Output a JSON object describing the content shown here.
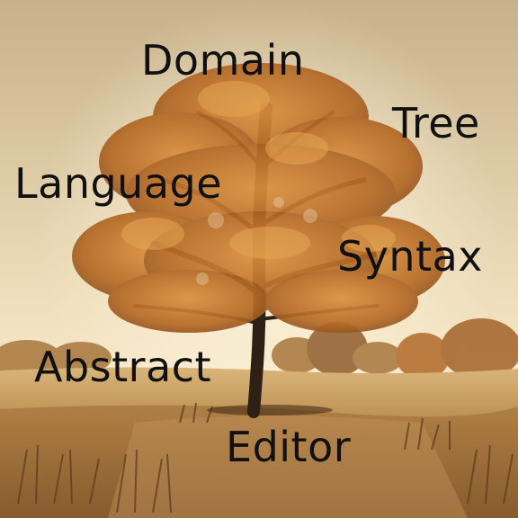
{
  "words": {
    "domain": "Domain",
    "tree": "Tree",
    "language": "Language",
    "syntax": "Syntax",
    "abstract": "Abstract",
    "editor": "Editor"
  },
  "colors": {
    "sky_top": "#c9b48c",
    "sky_glow": "#f7ead0",
    "field": "#b98c4e",
    "foliage": "#b8722a",
    "trunk": "#2f2016",
    "text": "#111111"
  }
}
